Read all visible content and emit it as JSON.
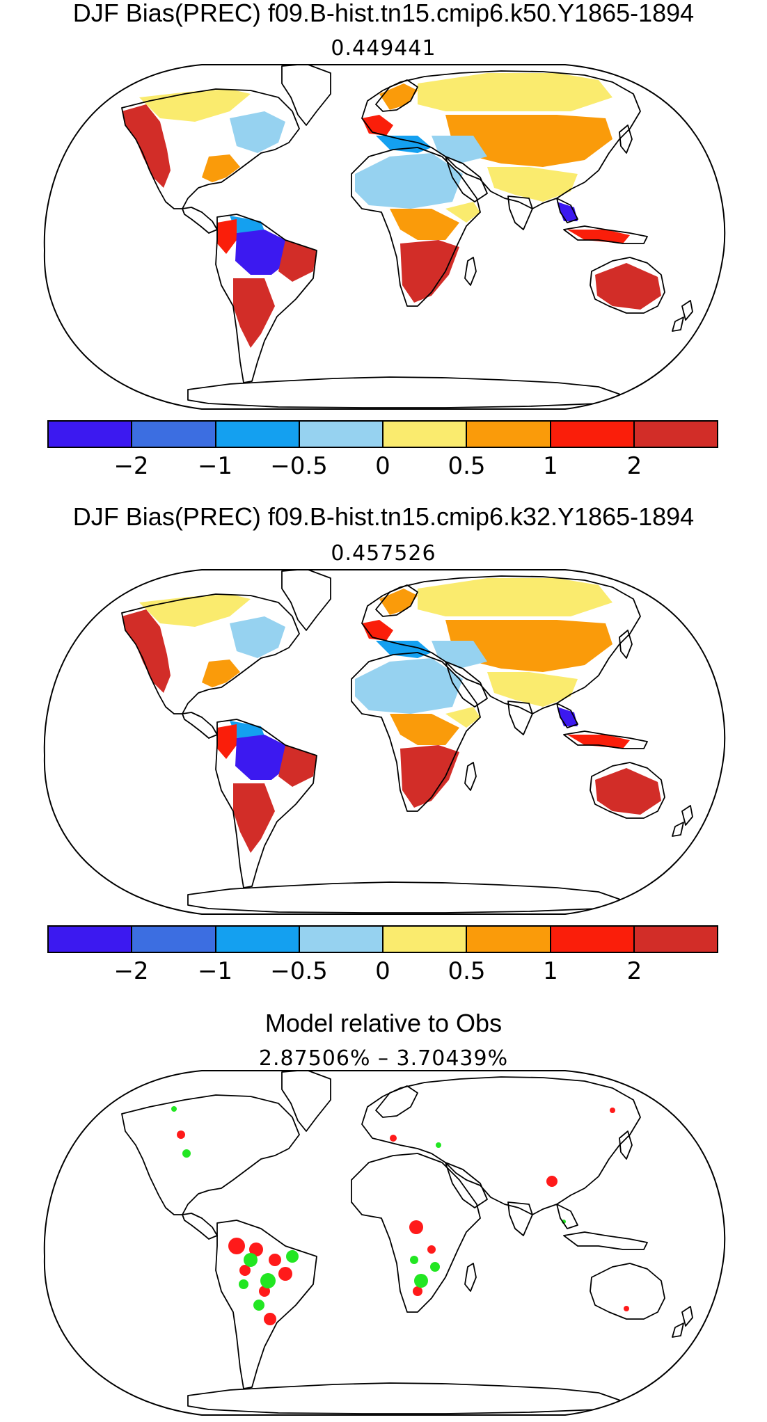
{
  "panels": [
    {
      "title": "DJF Bias(PREC) f09.B-hist.tn15.cmip6.k50.Y1865-1894",
      "subtitle": "0.449441",
      "has_colorbar": true
    },
    {
      "title": "DJF Bias(PREC) f09.B-hist.tn15.cmip6.k32.Y1865-1894",
      "subtitle": "0.457526",
      "has_colorbar": true
    },
    {
      "title": "Model relative to Obs",
      "subtitle": "2.87506% – 3.70439%",
      "has_colorbar": false
    }
  ],
  "colorbar": {
    "colors": [
      "#3c19f0",
      "#3c6ee1",
      "#14a0f0",
      "#96d2f0",
      "#faeb6e",
      "#fa9b0a",
      "#fa1e0a",
      "#d22d28"
    ],
    "labels": [
      "−2",
      "−1",
      "−0.5",
      "0",
      "0.5",
      "1",
      "2"
    ]
  },
  "map_colors": {
    "strong_wet": "#d22d28",
    "wet": "#fa1e0a",
    "moderate_wet": "#fa9b0a",
    "slight_wet": "#faeb6e",
    "slight_dry": "#96d2f0",
    "moderate_dry": "#14a0f0",
    "dry": "#3c6ee1",
    "strong_dry": "#3c19f0",
    "sig_red": "#ff1a1a",
    "sig_green": "#22e622"
  }
}
